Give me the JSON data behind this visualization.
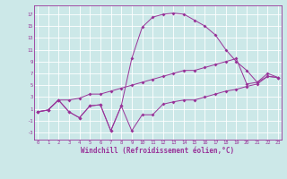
{
  "background_color": "#cce8e8",
  "grid_color": "#ffffff",
  "line_color": "#993399",
  "xlabel": "Windchill (Refroidissement éolien,°C)",
  "xlabel_fontsize": 5.5,
  "xticks": [
    0,
    1,
    2,
    3,
    4,
    5,
    6,
    7,
    8,
    9,
    10,
    11,
    12,
    13,
    14,
    15,
    16,
    17,
    18,
    19,
    20,
    21,
    22,
    23
  ],
  "yticks": [
    -3,
    -1,
    1,
    3,
    5,
    7,
    9,
    11,
    13,
    15,
    17
  ],
  "xlim": [
    -0.3,
    23.3
  ],
  "ylim": [
    -4.2,
    18.5
  ],
  "line1_x": [
    0,
    1,
    2,
    3,
    4,
    5,
    6,
    7,
    8,
    9,
    10,
    11,
    12,
    13,
    14,
    15,
    16,
    17,
    18,
    19,
    20,
    21,
    22,
    23
  ],
  "line1_y": [
    0.5,
    0.8,
    2.5,
    0.5,
    -0.5,
    1.5,
    1.7,
    -2.7,
    1.5,
    -2.7,
    0.0,
    0.0,
    1.8,
    2.2,
    2.5,
    2.5,
    3.0,
    3.5,
    4.0,
    4.3,
    4.8,
    5.2,
    6.5,
    6.3
  ],
  "line2_x": [
    0,
    1,
    2,
    3,
    4,
    5,
    6,
    7,
    8,
    9,
    10,
    11,
    12,
    13,
    14,
    15,
    16,
    17,
    18,
    19,
    20,
    21,
    22,
    23
  ],
  "line2_y": [
    0.5,
    0.8,
    2.5,
    0.5,
    -0.5,
    1.5,
    1.7,
    -2.7,
    1.5,
    9.5,
    14.8,
    16.5,
    17.0,
    17.2,
    17.0,
    16.0,
    15.0,
    13.5,
    11.0,
    9.0,
    7.5,
    5.5,
    6.5,
    6.3
  ],
  "line3_x": [
    0,
    1,
    2,
    3,
    4,
    5,
    6,
    7,
    8,
    9,
    10,
    11,
    12,
    13,
    14,
    15,
    16,
    17,
    18,
    19,
    20,
    21,
    22,
    23
  ],
  "line3_y": [
    0.5,
    0.8,
    2.5,
    2.5,
    2.8,
    3.5,
    3.5,
    4.0,
    4.5,
    5.0,
    5.5,
    6.0,
    6.5,
    7.0,
    7.5,
    7.5,
    8.0,
    8.5,
    9.0,
    9.5,
    5.2,
    5.5,
    7.0,
    6.3
  ]
}
